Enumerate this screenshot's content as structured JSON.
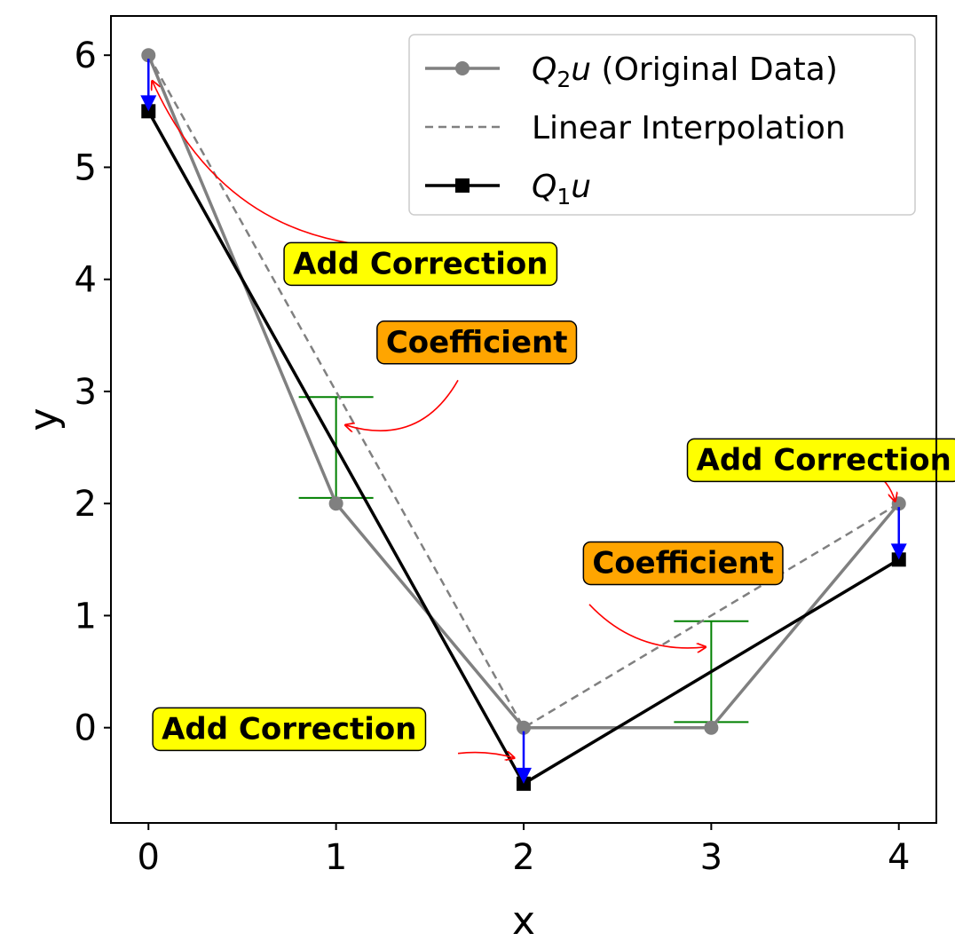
{
  "chart_data": {
    "type": "line",
    "xlabel": "x",
    "ylabel": "y",
    "xlim": [
      -0.2,
      4.2
    ],
    "ylim": [
      -0.85,
      6.35
    ],
    "xticks": [
      0,
      1,
      2,
      3,
      4
    ],
    "yticks": [
      0,
      1,
      2,
      3,
      4,
      5,
      6
    ],
    "grid": false,
    "legend": {
      "placement": "top-right",
      "entries": [
        {
          "series": "q2u",
          "text_prefix": "Q",
          "text_sub": "2",
          "text_math": "u",
          "text_rest": " (Original Data)"
        },
        {
          "series": "interp",
          "text_prefix": "",
          "text_sub": "",
          "text_math": "",
          "text_rest": "Linear Interpolation"
        },
        {
          "series": "q1u",
          "text_prefix": "Q",
          "text_sub": "1",
          "text_math": "u",
          "text_rest": ""
        }
      ]
    },
    "series": [
      {
        "id": "q2u",
        "color": "#808080",
        "marker": "circle",
        "style": "solid",
        "points": [
          [
            0,
            6
          ],
          [
            1,
            2
          ],
          [
            2,
            0
          ],
          [
            3,
            0
          ],
          [
            4,
            2
          ]
        ]
      },
      {
        "id": "interp",
        "color": "#808080",
        "marker": "none",
        "style": "dashed",
        "points": [
          [
            0,
            6
          ],
          [
            2,
            0
          ],
          [
            4,
            2
          ]
        ]
      },
      {
        "id": "q1u",
        "color": "#000000",
        "marker": "square",
        "style": "solid",
        "points": [
          [
            0,
            5.5
          ],
          [
            2,
            -0.5
          ],
          [
            4,
            1.5
          ]
        ]
      }
    ],
    "correction_arrows": [
      {
        "from": [
          0,
          6
        ],
        "to": [
          0,
          5.5
        ],
        "color": "#0000ff"
      },
      {
        "from": [
          2,
          0
        ],
        "to": [
          2,
          -0.5
        ],
        "color": "#0000ff"
      },
      {
        "from": [
          4,
          2
        ],
        "to": [
          4,
          1.5
        ],
        "color": "#0000ff"
      }
    ],
    "coefficient_bars": [
      {
        "x": 1,
        "y_low": 2.05,
        "y_high": 2.95,
        "color": "#008000"
      },
      {
        "x": 3,
        "y_low": 0.05,
        "y_high": 0.95,
        "color": "#008000"
      }
    ],
    "annotations": [
      {
        "text": "Add Correction",
        "box_color": "#ffff00",
        "label_at": [
          1.45,
          4.05
        ],
        "arrow_start": [
          1.5,
          4.3
        ],
        "arrow_end": [
          0.02,
          5.77
        ],
        "curve": -0.35
      },
      {
        "text": "Coefficient",
        "box_color": "#ffa500",
        "label_at": [
          1.75,
          3.35
        ],
        "arrow_start": [
          1.65,
          3.1
        ],
        "arrow_end": [
          1.05,
          2.7
        ],
        "curve": -0.4
      },
      {
        "text": "Add Correction",
        "box_color": "#ffff00",
        "label_at": [
          3.6,
          2.3
        ],
        "arrow_start": [
          3.85,
          2.3
        ],
        "arrow_end": [
          3.98,
          2.02
        ],
        "curve": -0.2
      },
      {
        "text": "Coefficient",
        "box_color": "#ffa500",
        "label_at": [
          2.85,
          1.38
        ],
        "arrow_start": [
          2.35,
          1.1
        ],
        "arrow_end": [
          2.97,
          0.72
        ],
        "curve": 0.25
      },
      {
        "text": "Add Correction",
        "box_color": "#ffff00",
        "label_at": [
          0.75,
          -0.1
        ],
        "arrow_start": [
          1.65,
          -0.23
        ],
        "arrow_end": [
          1.95,
          -0.27
        ],
        "curve": -0.1
      }
    ]
  }
}
